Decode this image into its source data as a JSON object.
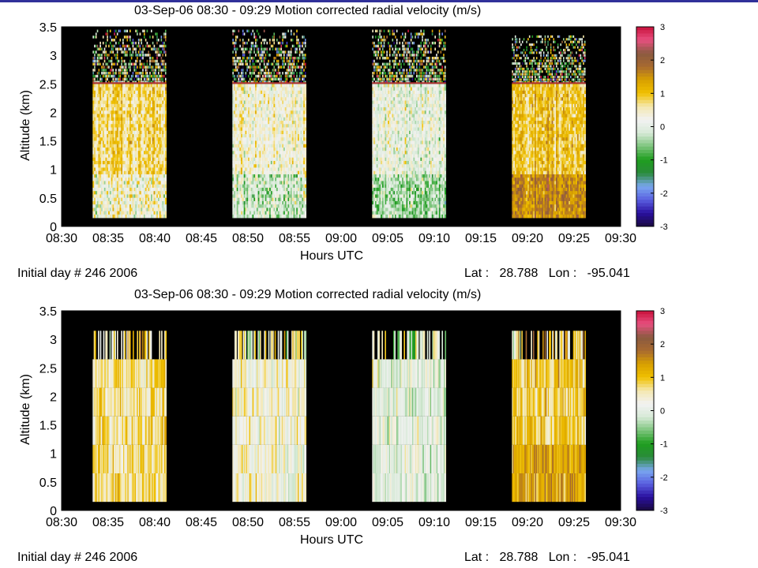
{
  "chart_data": [
    {
      "type": "heatmap",
      "title": "03-Sep-06 08:30 - 09:29 Motion corrected radial velocity (m/s)",
      "xlabel": "Hours UTC",
      "ylabel": "Altitude (km)",
      "x_ticks": [
        "08:30",
        "08:35",
        "08:40",
        "08:45",
        "08:50",
        "08:55",
        "09:00",
        "09:05",
        "09:10",
        "09:15",
        "09:20",
        "09:25",
        "09:30"
      ],
      "y_ticks": [
        "0",
        "0.5",
        "1",
        "1.5",
        "2",
        "2.5",
        "3",
        "3.5"
      ],
      "ylim": [
        0,
        3.5
      ],
      "xlim_minutes": [
        0,
        60
      ],
      "colorbar": {
        "min": -3,
        "max": 3,
        "ticks": [
          "3",
          "2",
          "1",
          "0",
          "-1",
          "-2",
          "-3"
        ],
        "unit": "m/s"
      },
      "background": "no data (black)",
      "data_segments": [
        {
          "start": "08:33:20",
          "end": "08:41:15",
          "data_top_km": 2.5,
          "noise_top_km": 3.45,
          "dominant_velocity": 0.8
        },
        {
          "start": "08:48:20",
          "end": "08:56:15",
          "data_top_km": 2.5,
          "noise_top_km": 3.45,
          "dominant_velocity": 0.3
        },
        {
          "start": "09:03:20",
          "end": "09:11:15",
          "data_top_km": 2.5,
          "noise_top_km": 3.45,
          "dominant_velocity": 0.1
        },
        {
          "start": "09:18:20",
          "end": "09:26:15",
          "data_top_km": 2.5,
          "noise_top_km": 3.35,
          "dominant_velocity": 0.9
        }
      ],
      "footer_left": "Initial day # 246  2006",
      "footer_right": "Lat :   28.788   Lon :   -95.041"
    },
    {
      "type": "heatmap",
      "title": "03-Sep-06 08:30 - 09:29 Motion corrected radial velocity (m/s)",
      "xlabel": "Hours UTC",
      "ylabel": "Altitude (km)",
      "x_ticks": [
        "08:30",
        "08:35",
        "08:40",
        "08:45",
        "08:50",
        "08:55",
        "09:00",
        "09:05",
        "09:10",
        "09:15",
        "09:20",
        "09:25",
        "09:30"
      ],
      "y_ticks": [
        "0",
        "0.5",
        "1",
        "1.5",
        "2",
        "2.5",
        "3",
        "3.5"
      ],
      "ylim": [
        0,
        3.5
      ],
      "xlim_minutes": [
        0,
        60
      ],
      "colorbar": {
        "min": -3,
        "max": 3,
        "ticks": [
          "3",
          "2",
          "1",
          "0",
          "-1",
          "-2",
          "-3"
        ],
        "unit": "m/s"
      },
      "background": "no data (black)",
      "altitude_bins_km": [
        0.15,
        0.65,
        1.15,
        1.65,
        2.15,
        2.65,
        3.15
      ],
      "data_segments": [
        {
          "start": "08:33:20",
          "end": "08:41:15",
          "data_top_km": 2.65,
          "noise_top_km": 3.15,
          "dominant_velocity": 0.7
        },
        {
          "start": "08:48:20",
          "end": "08:56:15",
          "data_top_km": 2.65,
          "noise_top_km": 3.15,
          "dominant_velocity": 0.3
        },
        {
          "start": "09:03:20",
          "end": "09:11:15",
          "data_top_km": 2.65,
          "noise_top_km": 3.15,
          "dominant_velocity": 0.0
        },
        {
          "start": "09:18:20",
          "end": "09:26:15",
          "data_top_km": 2.65,
          "noise_top_km": 3.15,
          "dominant_velocity": 0.9
        }
      ],
      "footer_left": "Initial day # 246  2006",
      "footer_right": "Lat :   28.788   Lon :   -95.041"
    }
  ],
  "colors": {
    "no_data": "#000000",
    "colormap": [
      "#1a0a40",
      "#2a10a0",
      "#5a60e0",
      "#7aa8f0",
      "#2a8a3a",
      "#1e9e1e",
      "#7cc47c",
      "#d6ead6",
      "#f2f2f2",
      "#f4e8b0",
      "#f0c000",
      "#d8a000",
      "#a86a30",
      "#8a5a40",
      "#e85080",
      "#c8103a"
    ]
  }
}
